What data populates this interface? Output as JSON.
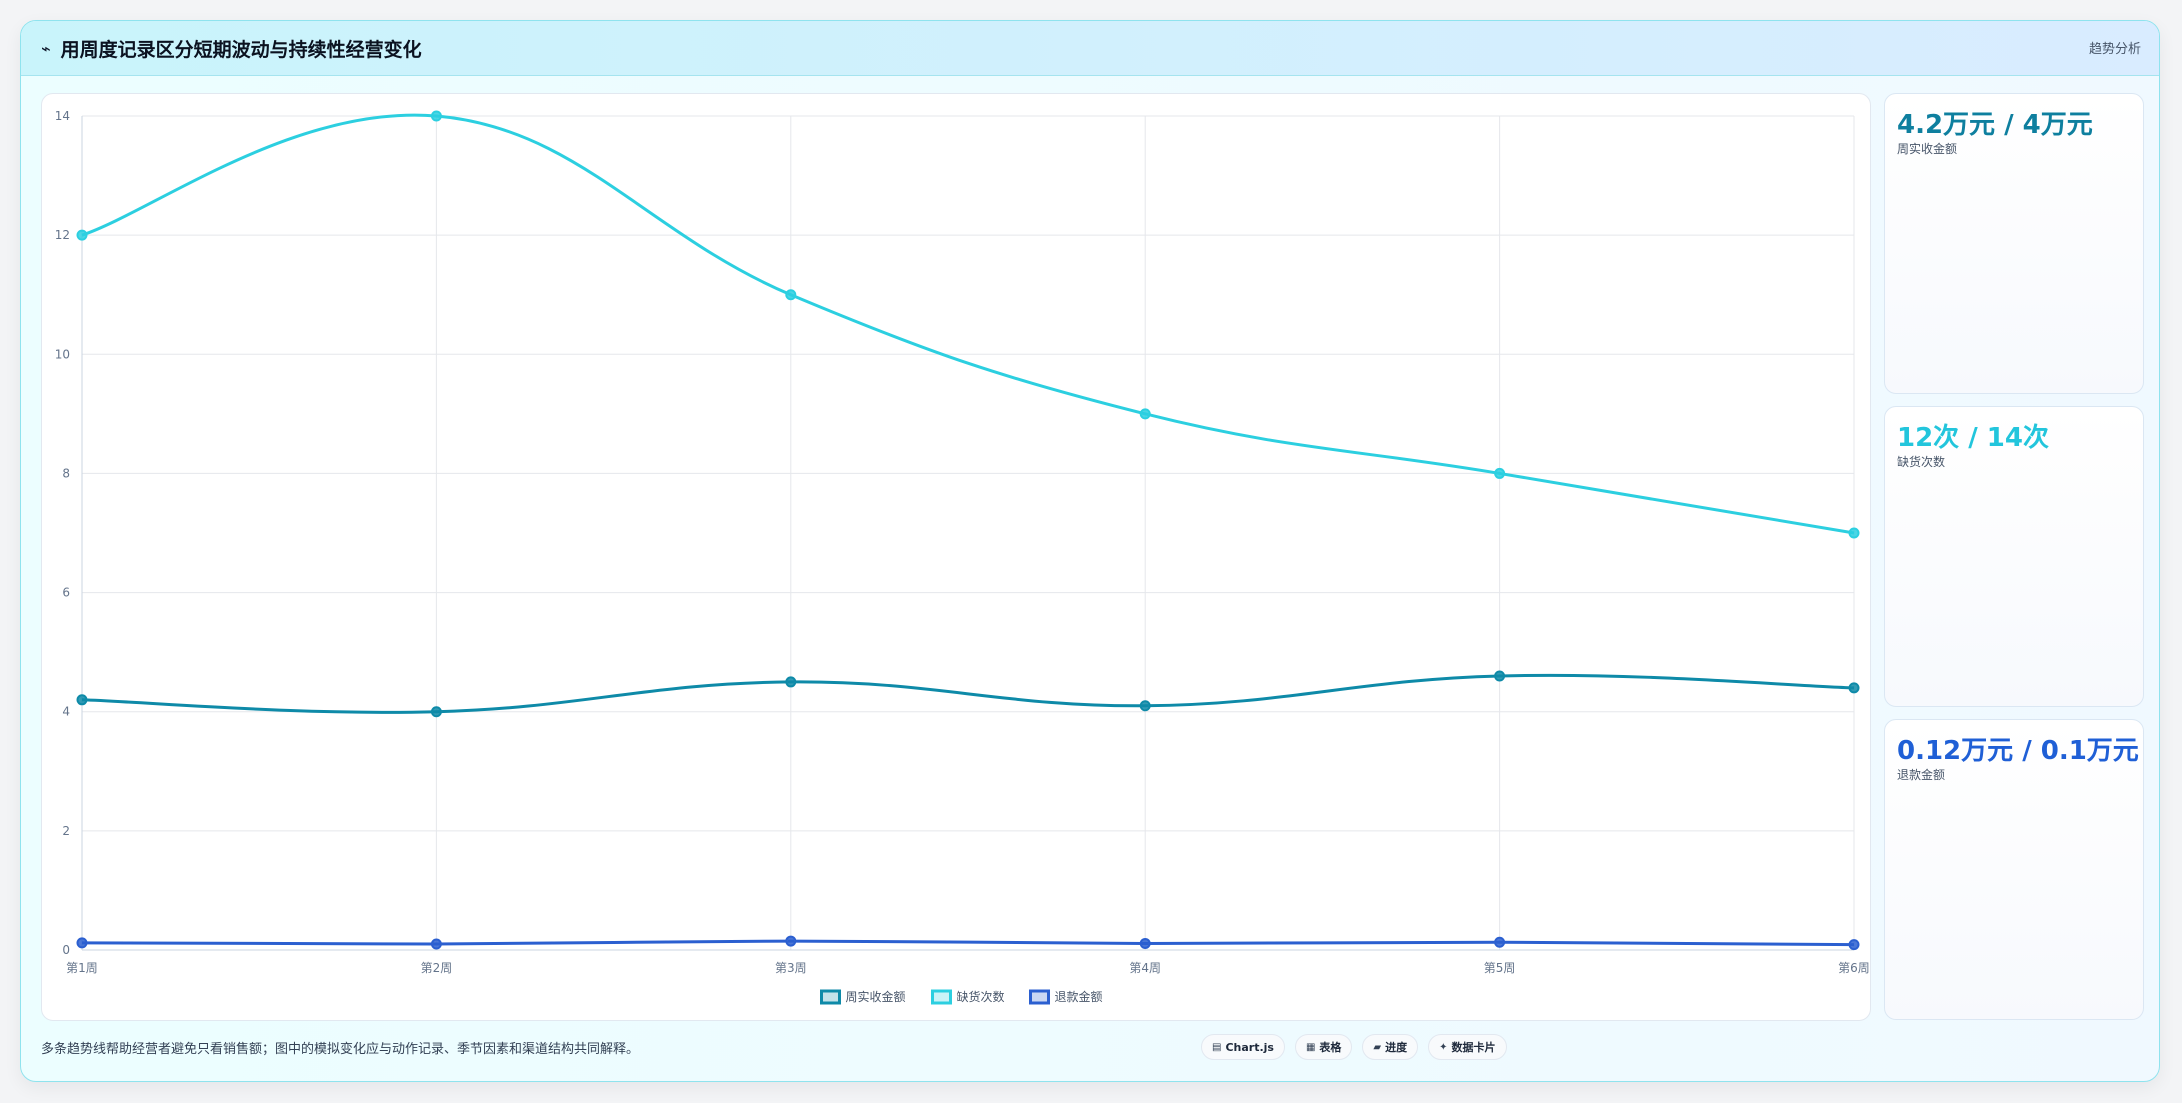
{
  "header": {
    "icon": "trend-line-icon",
    "icon_glyph": "⌁",
    "title": "用周度记录区分短期波动与持续性经营变化",
    "tag": "趋势分析"
  },
  "kpis": [
    {
      "value": "4.2万元 / 4万元",
      "label": "周实收金额",
      "color": "#0e7f9f"
    },
    {
      "value": "12次 / 14次",
      "label": "缺货次数",
      "color": "#22c5dc"
    },
    {
      "value": "0.12万元 / 0.1万元",
      "label": "退款金额",
      "color": "#1f5fd6"
    }
  ],
  "footer": {
    "note": "多条趋势线帮助经营者避免只看销售额；图中的模拟变化应与动作记录、季节因素和渠道结构共同解释。",
    "pills": [
      {
        "icon": "chart-icon",
        "glyph": "▤",
        "label": "Chart.js"
      },
      {
        "icon": "table-icon",
        "glyph": "▦",
        "label": "表格"
      },
      {
        "icon": "progress-icon",
        "glyph": "▰",
        "label": "进度"
      },
      {
        "icon": "sparkle-icon",
        "glyph": "✦",
        "label": "数据卡片"
      }
    ]
  },
  "chart_data": {
    "type": "line",
    "categories": [
      "第1周",
      "第2周",
      "第3周",
      "第4周",
      "第5周",
      "第6周"
    ],
    "series": [
      {
        "name": "周实收金额",
        "values": [
          4.2,
          4.0,
          4.5,
          4.1,
          4.6,
          4.4
        ],
        "color": "#0e8aa8"
      },
      {
        "name": "缺货次数",
        "values": [
          12,
          14,
          11,
          9,
          8,
          7
        ],
        "color": "#2ccfe0"
      },
      {
        "name": "退款金额",
        "values": [
          0.12,
          0.1,
          0.15,
          0.11,
          0.13,
          0.09
        ],
        "color": "#2b5fd0"
      }
    ],
    "ylim": [
      0,
      14
    ],
    "yticks": [
      "0",
      "2",
      "4",
      "6",
      "8",
      "10",
      "12",
      "14"
    ],
    "grid": true,
    "legend": "bottom"
  }
}
